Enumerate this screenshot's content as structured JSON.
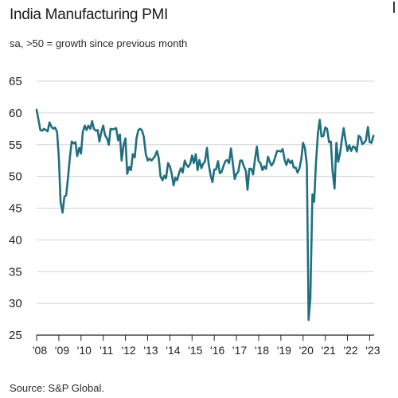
{
  "chart_data": {
    "type": "line",
    "title": "India Manufacturing PMI",
    "subtitle": "sa, >50 = growth since previous month",
    "source": "Source: S&P Global.",
    "xlabel": "",
    "ylabel": "",
    "ylim": [
      25,
      65
    ],
    "xlim": [
      2008.0,
      2023.2
    ],
    "grid": "horizontal",
    "yticks": [
      25,
      30,
      35,
      40,
      45,
      50,
      55,
      60,
      65
    ],
    "xticks": [
      "'08",
      "'09",
      "'10",
      "'11",
      "'12",
      "'13",
      "'14",
      "'15",
      "'16",
      "'17",
      "'18",
      "'19",
      "'20",
      "'21",
      "'22",
      "'23"
    ],
    "line_color": "#1f6f80",
    "series": [
      {
        "x": [
          2008.0,
          2008.08,
          2008.17,
          2008.25,
          2008.33,
          2008.42,
          2008.5,
          2008.58,
          2008.67,
          2008.75,
          2008.83,
          2008.92,
          2009.0,
          2009.08,
          2009.17,
          2009.25,
          2009.33,
          2009.42,
          2009.5,
          2009.58,
          2009.67,
          2009.75,
          2009.83,
          2009.92,
          2010.0,
          2010.08,
          2010.17,
          2010.25,
          2010.33,
          2010.42,
          2010.5,
          2010.58,
          2010.67,
          2010.75,
          2010.83,
          2010.92,
          2011.0,
          2011.08,
          2011.17,
          2011.25,
          2011.33,
          2011.42,
          2011.5,
          2011.58,
          2011.67,
          2011.75,
          2011.83,
          2011.92,
          2012.0,
          2012.08,
          2012.17,
          2012.25,
          2012.33,
          2012.42,
          2012.5,
          2012.58,
          2012.67,
          2012.75,
          2012.83,
          2012.92,
          2013.0,
          2013.08,
          2013.17,
          2013.25,
          2013.33,
          2013.42,
          2013.5,
          2013.58,
          2013.67,
          2013.75,
          2013.83,
          2013.92,
          2014.0,
          2014.08,
          2014.17,
          2014.25,
          2014.33,
          2014.42,
          2014.5,
          2014.58,
          2014.67,
          2014.75,
          2014.83,
          2014.92,
          2015.0,
          2015.08,
          2015.17,
          2015.25,
          2015.33,
          2015.42,
          2015.5,
          2015.58,
          2015.67,
          2015.75,
          2015.83,
          2015.92,
          2016.0,
          2016.08,
          2016.17,
          2016.25,
          2016.33,
          2016.42,
          2016.5,
          2016.58,
          2016.67,
          2016.75,
          2016.83,
          2016.92,
          2017.0,
          2017.08,
          2017.17,
          2017.25,
          2017.33,
          2017.42,
          2017.5,
          2017.58,
          2017.67,
          2017.75,
          2017.83,
          2017.92,
          2018.0,
          2018.08,
          2018.17,
          2018.25,
          2018.33,
          2018.42,
          2018.5,
          2018.58,
          2018.67,
          2018.75,
          2018.83,
          2018.92,
          2019.0,
          2019.08,
          2019.17,
          2019.25,
          2019.33,
          2019.42,
          2019.5,
          2019.58,
          2019.67,
          2019.75,
          2019.83,
          2019.92,
          2020.0,
          2020.08,
          2020.17,
          2020.25,
          2020.33,
          2020.42,
          2020.5,
          2020.58,
          2020.67,
          2020.75,
          2020.83,
          2020.92,
          2021.0,
          2021.08,
          2021.17,
          2021.25,
          2021.33,
          2021.42,
          2021.5,
          2021.58,
          2021.67,
          2021.75,
          2021.83,
          2021.92,
          2022.0,
          2022.08,
          2022.17,
          2022.25,
          2022.33,
          2022.42,
          2022.5,
          2022.58,
          2022.67,
          2022.75,
          2022.83,
          2022.92,
          2023.0,
          2023.08,
          2023.17
        ],
        "values": [
          60.5,
          59.0,
          57.3,
          57.2,
          57.5,
          57.3,
          57.1,
          58.5,
          57.8,
          57.5,
          57.7,
          57.0,
          53.0,
          46.0,
          44.3,
          46.8,
          47.0,
          50.0,
          53.0,
          55.5,
          55.2,
          55.4,
          53.2,
          54.5,
          53.6,
          57.0,
          58.0,
          57.3,
          58.0,
          57.5,
          58.7,
          57.5,
          57.2,
          57.3,
          55.5,
          57.1,
          58.0,
          56.5,
          56.0,
          55.0,
          57.5,
          57.4,
          57.5,
          57.6,
          55.7,
          56.6,
          52.5,
          55.0,
          56.0,
          50.4,
          51.5,
          51.0,
          53.5,
          53.0,
          56.0,
          57.3,
          57.5,
          57.2,
          56.2,
          53.5,
          52.5,
          52.8,
          52.5,
          52.8,
          53.2,
          54.0,
          52.9,
          50.0,
          49.4,
          50.1,
          49.7,
          52.1,
          51.6,
          50.5,
          48.6,
          49.8,
          49.4,
          50.6,
          51.3,
          50.6,
          52.5,
          51.8,
          51.5,
          52.0,
          53.3,
          52.1,
          53.5,
          51.0,
          52.6,
          51.3,
          52.0,
          52.3,
          54.5,
          51.9,
          50.3,
          49.1,
          51.1,
          51.1,
          52.4,
          50.5,
          50.7,
          51.7,
          52.4,
          52.6,
          52.1,
          54.4,
          52.3,
          49.6,
          50.4,
          50.7,
          52.5,
          52.5,
          51.6,
          50.9,
          47.9,
          51.2,
          51.2,
          50.3,
          52.6,
          54.7,
          52.4,
          52.1,
          51.0,
          51.6,
          51.2,
          53.1,
          52.3,
          51.7,
          52.2,
          53.1,
          54.0,
          54.0,
          53.9,
          54.3,
          52.6,
          51.8,
          52.7,
          52.1,
          52.5,
          51.4,
          51.4,
          50.6,
          51.2,
          52.7,
          55.3,
          54.5,
          51.8,
          27.4,
          30.8,
          47.2,
          46.0,
          52.0,
          56.8,
          58.9,
          56.3,
          56.4,
          57.7,
          57.5,
          55.4,
          55.5,
          50.8,
          48.1,
          55.3,
          52.3,
          53.7,
          55.9,
          57.6,
          55.5,
          54.0,
          54.9,
          54.0,
          54.7,
          54.6,
          53.9,
          56.4,
          56.2,
          55.1,
          55.3,
          55.7,
          57.8,
          55.4,
          55.3,
          56.4
        ]
      }
    ]
  }
}
